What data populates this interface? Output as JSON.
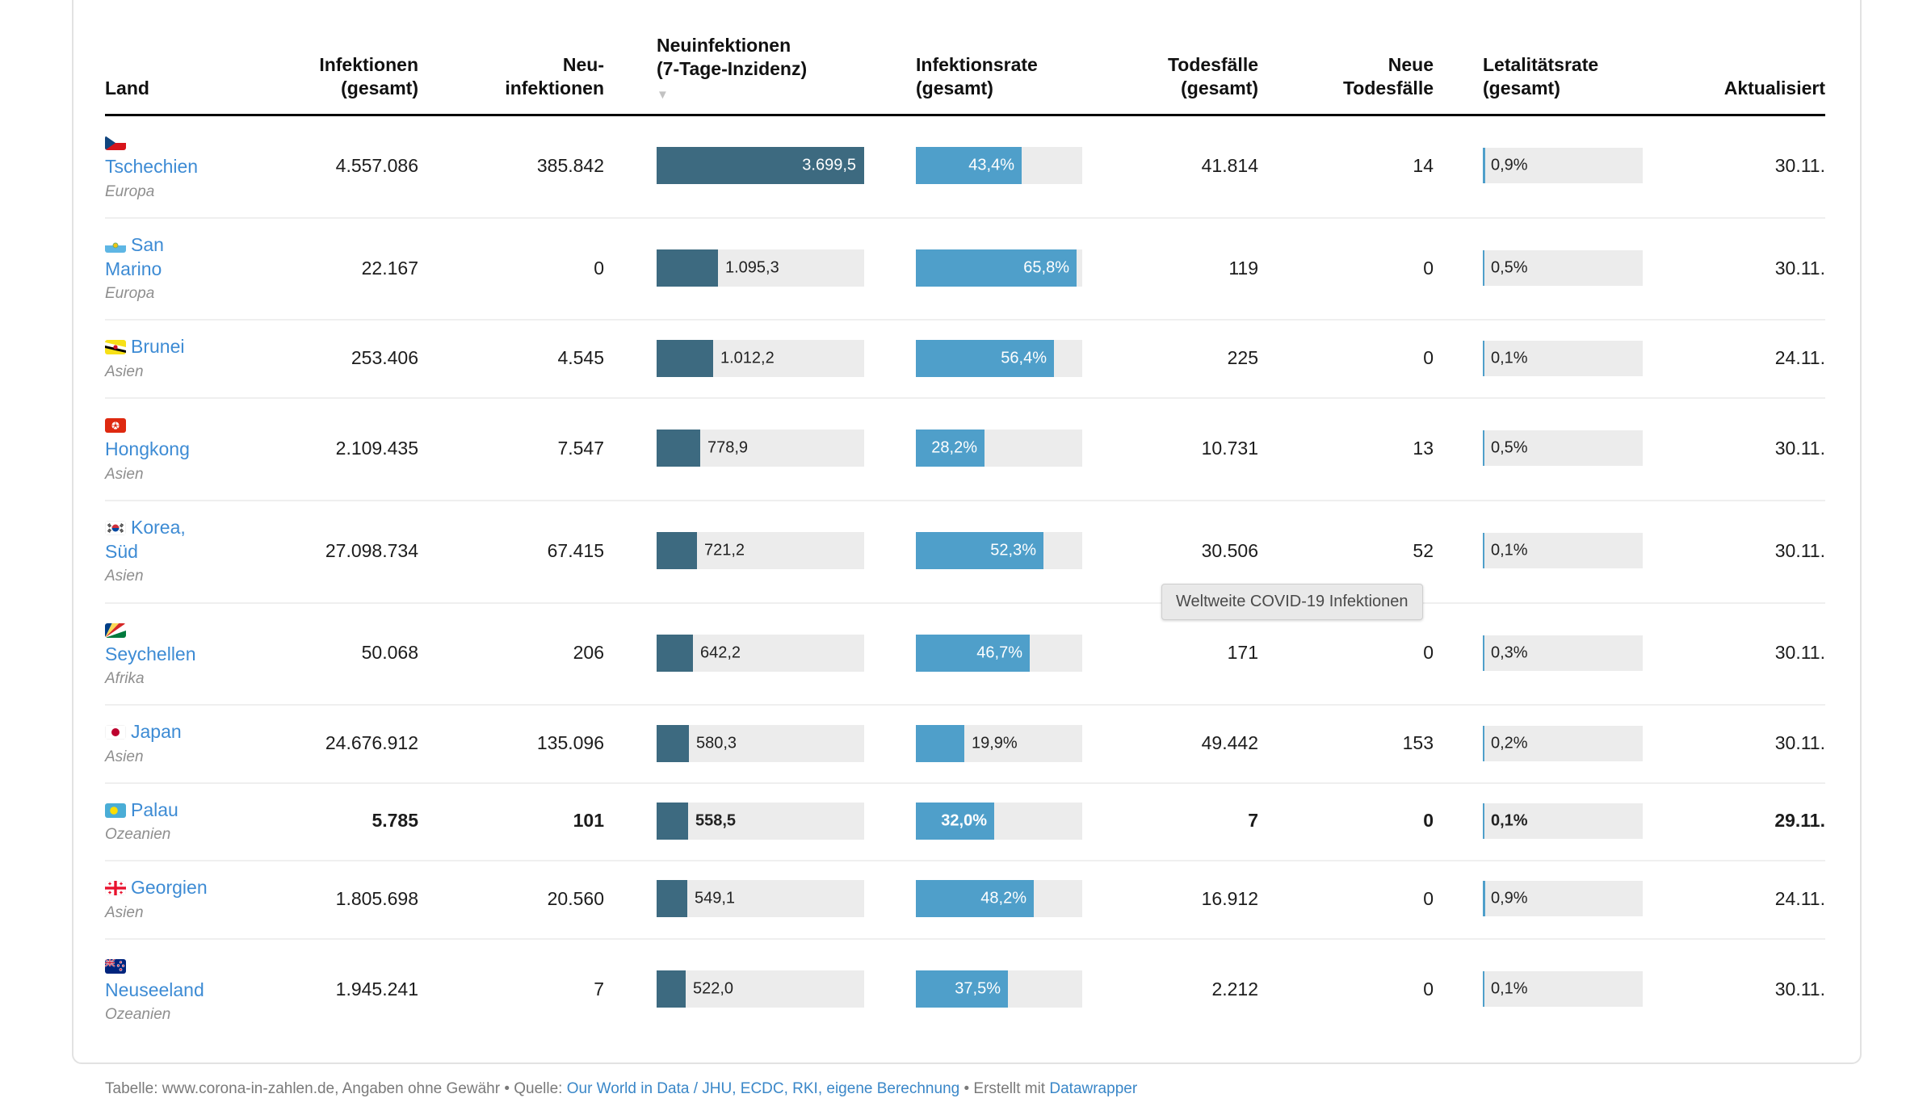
{
  "chart_data": {
    "type": "table",
    "columns": [
      "Land",
      "Infektionen (gesamt)",
      "Neu-infektionen",
      "Neuinfektionen (7-Tage-Inzidenz)",
      "Infektionsrate (gesamt)",
      "Todesfälle (gesamt)",
      "Neue Todesfälle",
      "Letalitätsrate (gesamt)",
      "Aktualisiert"
    ],
    "sort_column": "Neuinfektionen (7-Tage-Inzidenz)",
    "sort_direction": "desc",
    "scales": {
      "incidence_bar_max": 3699.5,
      "rate_bar_max": 68
    },
    "rows": [
      {
        "country": "Tschechien",
        "continent": "Europa",
        "flag": "tschechien",
        "infections_total": "4.557.086",
        "new_infections": "385.842",
        "incidence": 3699.5,
        "incidence_label": "3.699,5",
        "rate": 43.4,
        "rate_label": "43,4%",
        "deaths_total": "41.814",
        "new_deaths": "14",
        "letality": 0.9,
        "letality_label": "0,9%",
        "updated": "30.11.",
        "highlight": false
      },
      {
        "country": "San Marino",
        "continent": "Europa",
        "flag": "san-marino",
        "infections_total": "22.167",
        "new_infections": "0",
        "incidence": 1095.3,
        "incidence_label": "1.095,3",
        "rate": 65.8,
        "rate_label": "65,8%",
        "deaths_total": "119",
        "new_deaths": "0",
        "letality": 0.5,
        "letality_label": "0,5%",
        "updated": "30.11.",
        "highlight": false
      },
      {
        "country": "Brunei",
        "continent": "Asien",
        "flag": "brunei",
        "infections_total": "253.406",
        "new_infections": "4.545",
        "incidence": 1012.2,
        "incidence_label": "1.012,2",
        "rate": 56.4,
        "rate_label": "56,4%",
        "deaths_total": "225",
        "new_deaths": "0",
        "letality": 0.1,
        "letality_label": "0,1%",
        "updated": "24.11.",
        "highlight": false
      },
      {
        "country": "Hongkong",
        "continent": "Asien",
        "flag": "hongkong",
        "infections_total": "2.109.435",
        "new_infections": "7.547",
        "incidence": 778.9,
        "incidence_label": "778,9",
        "rate": 28.2,
        "rate_label": "28,2%",
        "deaths_total": "10.731",
        "new_deaths": "13",
        "letality": 0.5,
        "letality_label": "0,5%",
        "updated": "30.11.",
        "highlight": false
      },
      {
        "country": "Korea, Süd",
        "continent": "Asien",
        "flag": "korea-sued",
        "infections_total": "27.098.734",
        "new_infections": "67.415",
        "incidence": 721.2,
        "incidence_label": "721,2",
        "rate": 52.3,
        "rate_label": "52,3%",
        "deaths_total": "30.506",
        "new_deaths": "52",
        "letality": 0.1,
        "letality_label": "0,1%",
        "updated": "30.11.",
        "highlight": false
      },
      {
        "country": "Seychellen",
        "continent": "Afrika",
        "flag": "seychellen",
        "infections_total": "50.068",
        "new_infections": "206",
        "incidence": 642.2,
        "incidence_label": "642,2",
        "rate": 46.7,
        "rate_label": "46,7%",
        "deaths_total": "171",
        "new_deaths": "0",
        "letality": 0.3,
        "letality_label": "0,3%",
        "updated": "30.11.",
        "highlight": false
      },
      {
        "country": "Japan",
        "continent": "Asien",
        "flag": "japan",
        "infections_total": "24.676.912",
        "new_infections": "135.096",
        "incidence": 580.3,
        "incidence_label": "580,3",
        "rate": 19.9,
        "rate_label": "19,9%",
        "deaths_total": "49.442",
        "new_deaths": "153",
        "letality": 0.2,
        "letality_label": "0,2%",
        "updated": "30.11.",
        "highlight": false
      },
      {
        "country": "Palau",
        "continent": "Ozeanien",
        "flag": "palau",
        "infections_total": "5.785",
        "new_infections": "101",
        "incidence": 558.5,
        "incidence_label": "558,5",
        "rate": 32.0,
        "rate_label": "32,0%",
        "deaths_total": "7",
        "new_deaths": "0",
        "letality": 0.1,
        "letality_label": "0,1%",
        "updated": "29.11.",
        "highlight": true
      },
      {
        "country": "Georgien",
        "continent": "Asien",
        "flag": "georgien",
        "infections_total": "1.805.698",
        "new_infections": "20.560",
        "incidence": 549.1,
        "incidence_label": "549,1",
        "rate": 48.2,
        "rate_label": "48,2%",
        "deaths_total": "16.912",
        "new_deaths": "0",
        "letality": 0.9,
        "letality_label": "0,9%",
        "updated": "24.11.",
        "highlight": false
      },
      {
        "country": "Neuseeland",
        "continent": "Ozeanien",
        "flag": "neuseeland",
        "infections_total": "1.945.241",
        "new_infections": "7",
        "incidence": 522.0,
        "incidence_label": "522,0",
        "rate": 37.5,
        "rate_label": "37,5%",
        "deaths_total": "2.212",
        "new_deaths": "0",
        "letality": 0.1,
        "letality_label": "0,1%",
        "updated": "30.11.",
        "highlight": false
      }
    ]
  },
  "header": {
    "sort_icon": "▼",
    "cols": [
      {
        "lines": [
          "Land"
        ]
      },
      {
        "lines": [
          "Infektionen",
          "(gesamt)"
        ]
      },
      {
        "lines": [
          "Neu-",
          "infektionen"
        ]
      },
      {
        "lines": [
          "Neuinfektionen",
          "(7-Tage-Inzidenz)"
        ]
      },
      {
        "lines": [
          "Infektionsrate",
          "(gesamt)"
        ]
      },
      {
        "lines": [
          "Todesfälle",
          "(gesamt)"
        ]
      },
      {
        "lines": [
          "Neue",
          "Todesfälle"
        ]
      },
      {
        "lines": [
          "Letalitätsrate",
          "(gesamt)"
        ]
      },
      {
        "lines": [
          "Aktualisiert"
        ]
      }
    ]
  },
  "tooltip": {
    "text": "Weltweite COVID-19 Infektionen"
  },
  "footer": {
    "prefix": "Tabelle: www.corona-in-zahlen.de, Angaben ohne Gewähr • Quelle: ",
    "source_link": "Our World in Data / JHU, ECDC, RKI, eigene Berechnung",
    "middle": " • Erstellt mit ",
    "tool_link": "Datawrapper"
  },
  "colors": {
    "incidence_bar": "#3d6a80",
    "rate_bar": "#4f9fca",
    "bar_track": "#ececec",
    "country_link": "#3d8bd4",
    "footer_link": "#3a87c8",
    "tooltip_bg": "#e9e9e9"
  }
}
